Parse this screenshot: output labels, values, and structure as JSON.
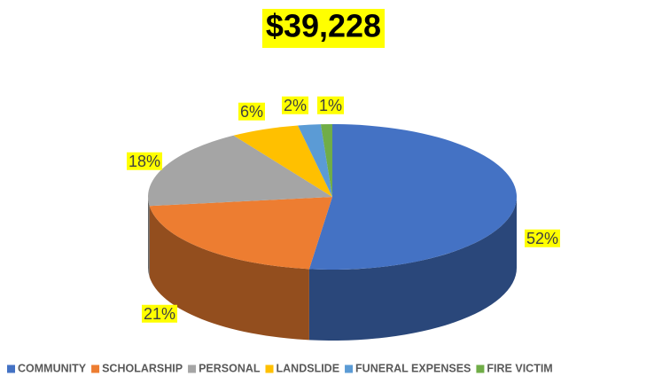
{
  "chart_data": {
    "type": "pie",
    "title": "$39,228",
    "categories": [
      "COMMUNITY",
      "SCHOLARSHIP",
      "PERSONAL",
      "LANDSLIDE",
      "FUNERAL EXPENSES",
      "FIRE VICTIM"
    ],
    "values": [
      52,
      21,
      18,
      6,
      2,
      1
    ],
    "value_labels": [
      "52%",
      "21%",
      "18%",
      "6%",
      "2%",
      "1%"
    ],
    "colors": [
      "#4472c4",
      "#ed7d31",
      "#a5a5a5",
      "#ffc000",
      "#5b9bd5",
      "#70ad47"
    ],
    "legend": "bottom"
  }
}
